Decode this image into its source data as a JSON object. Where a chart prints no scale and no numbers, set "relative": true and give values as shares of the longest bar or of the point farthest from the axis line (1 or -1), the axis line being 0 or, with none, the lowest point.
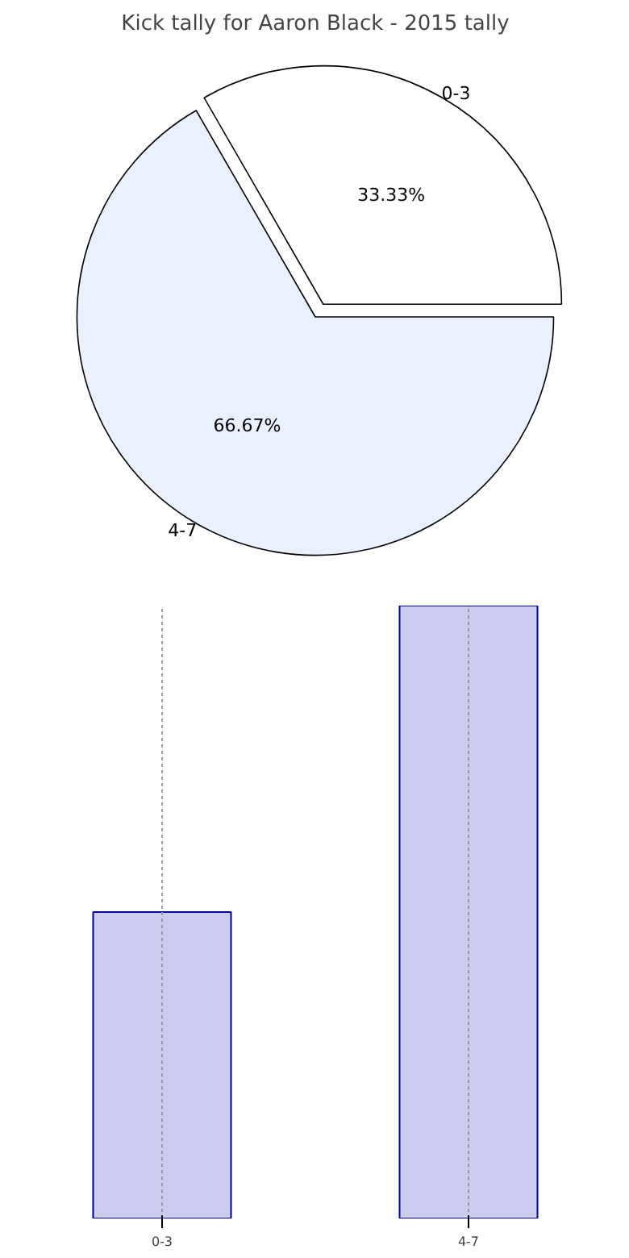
{
  "chart_data": [
    {
      "type": "pie",
      "title": "Kick tally for Aaron Black - 2015 tally",
      "categories": [
        "0-3",
        "4-7"
      ],
      "values": [
        33.33,
        66.67
      ],
      "colors": [
        "#ffffff",
        "#eaf0fd"
      ],
      "value_labels": [
        "33.33%",
        "66.67%"
      ]
    },
    {
      "type": "bar",
      "categories": [
        "0-3",
        "4-7"
      ],
      "values": [
        0.5,
        1
      ],
      "color": "#ccccee",
      "relative": true,
      "grid": "x"
    }
  ]
}
